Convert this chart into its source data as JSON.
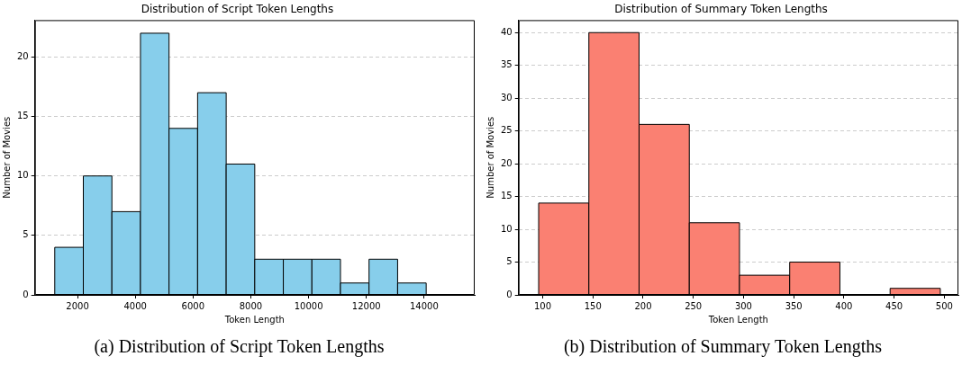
{
  "chart_data": [
    {
      "type": "histogram",
      "title": "Distribution of Script Token Lengths",
      "xlabel": "Token Length",
      "ylabel": "Number of Movies",
      "bins": [
        1213,
        2202,
        3191,
        4180,
        5169,
        6158,
        7147,
        8136,
        9125,
        10114,
        11103,
        12092,
        13081,
        14070
      ],
      "values": [
        4,
        10,
        7,
        22,
        14,
        17,
        11,
        3,
        3,
        3,
        1,
        3,
        1
      ],
      "color": "#87ceeb",
      "xlim": [
        525,
        15749
      ],
      "xticks": [
        2000,
        4000,
        6000,
        8000,
        10000,
        12000,
        14000
      ],
      "ylim": [
        0,
        23.1
      ],
      "yticks": [
        0,
        5,
        10,
        15,
        20
      ],
      "grid": "y",
      "legend": false,
      "annotations": [
        "(a) Distribution of Script Token Lengths"
      ]
    },
    {
      "type": "histogram",
      "title": "Distribution of Summary Token Lengths",
      "xlabel": "Token Length",
      "ylabel": "Number of Movies",
      "bins": [
        96,
        146,
        196,
        246,
        296,
        346,
        396,
        446,
        496
      ],
      "values": [
        14,
        40,
        26,
        11,
        3,
        5,
        0,
        1
      ],
      "color": "#fa8072",
      "xlim": [
        76,
        514
      ],
      "xticks": [
        100,
        150,
        200,
        250,
        300,
        350,
        400,
        450,
        500
      ],
      "ylim": [
        0,
        41.9
      ],
      "yticks": [
        0,
        5,
        10,
        15,
        20,
        25,
        30,
        35,
        40
      ],
      "grid": "y",
      "legend": false,
      "annotations": [
        "(b) Distribution of Summary Token Lengths"
      ]
    }
  ]
}
